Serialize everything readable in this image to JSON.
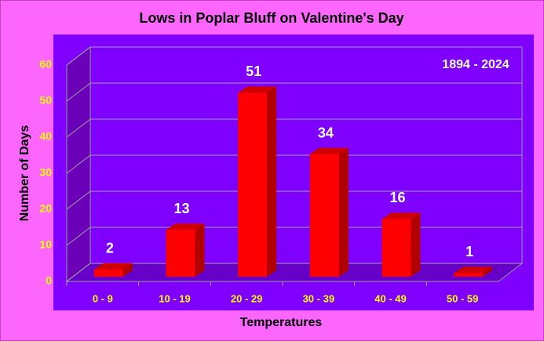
{
  "chart_data": {
    "type": "bar3d",
    "title": "Lows in Poplar Bluff on Valentine's Day",
    "annotation": "1894 - 2024",
    "x_label": "Temperatures",
    "y_label": "Number of Days",
    "categories": [
      "0 - 9",
      "10 - 19",
      "20 - 29",
      "30 - 39",
      "40 - 49",
      "50 - 59"
    ],
    "values": [
      2,
      13,
      51,
      34,
      16,
      1
    ],
    "color": "#ff0000",
    "ylim": [
      0,
      60
    ],
    "yticks": [
      0,
      10,
      20,
      30,
      40,
      50,
      60
    ],
    "grid": true
  }
}
